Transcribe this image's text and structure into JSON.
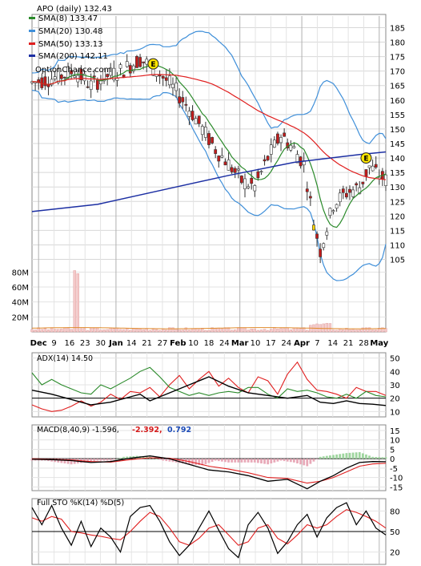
{
  "chart_data": {
    "type": "candlestick",
    "title": "APO (daily) 132.43",
    "watermark": "OptionChance.com",
    "x_tick_labels": [
      "Dec",
      "9",
      "16",
      "23",
      "30",
      "Jan",
      "14",
      "21",
      "27",
      "Feb",
      "10",
      "18",
      "24",
      "Mar",
      "10",
      "17",
      "24",
      "Apr",
      "7",
      "14",
      "21",
      "28",
      "May"
    ],
    "bold_x_labels": [
      "Dec",
      "Jan",
      "Feb",
      "Mar",
      "Apr",
      "May"
    ],
    "price_axis": {
      "ticks": [
        105,
        110,
        115,
        120,
        125,
        130,
        135,
        140,
        145,
        150,
        155,
        160,
        165,
        170,
        175,
        180,
        185
      ],
      "range": [
        101,
        189
      ]
    },
    "volume_axis": {
      "ticks": [
        "20M",
        "40M",
        "60M",
        "80M"
      ],
      "range_millions": [
        0,
        90
      ]
    },
    "legend": [
      {
        "label": "SMA(8) 133.47",
        "color": "#2a8a2a"
      },
      {
        "label": "SMA(20) 130.48",
        "color": "#3f8fd9"
      },
      {
        "label": "SMA(50) 133.13",
        "color": "#e01f1f"
      },
      {
        "label": "SMA(200) 142.11",
        "color": "#1c2fa3"
      }
    ],
    "earnings_markers": [
      {
        "label": "E",
        "x_index": 37,
        "price": 172.5
      },
      {
        "label": "E",
        "x_index": 102,
        "price": 140
      }
    ],
    "sma200_points": [
      [
        0,
        121.5
      ],
      [
        20,
        124
      ],
      [
        40,
        129
      ],
      [
        60,
        134
      ],
      [
        80,
        138.5
      ],
      [
        100,
        141.2
      ],
      [
        108,
        142.1
      ]
    ],
    "volume_spikes_millions": [
      {
        "x_index": 13,
        "value": 82
      },
      {
        "x_index": 14,
        "value": 78
      }
    ],
    "adx_panel": {
      "label": "ADX(14) 14.50",
      "ticks": [
        10,
        20,
        30,
        40,
        50
      ],
      "range": [
        6,
        54
      ],
      "adx": [
        [
          0,
          26
        ],
        [
          6,
          23
        ],
        [
          12,
          19
        ],
        [
          18,
          15
        ],
        [
          24,
          17
        ],
        [
          30,
          21
        ],
        [
          33,
          23
        ],
        [
          36,
          18
        ],
        [
          42,
          24
        ],
        [
          48,
          30
        ],
        [
          54,
          36
        ],
        [
          60,
          29
        ],
        [
          66,
          24
        ],
        [
          72,
          22
        ],
        [
          78,
          20
        ],
        [
          84,
          22
        ],
        [
          88,
          17
        ],
        [
          92,
          16
        ],
        [
          96,
          18
        ],
        [
          100,
          16
        ],
        [
          104,
          15.5
        ],
        [
          108,
          14.5
        ]
      ],
      "plus_di": [
        [
          0,
          39
        ],
        [
          3,
          30
        ],
        [
          6,
          34
        ],
        [
          9,
          30
        ],
        [
          12,
          27
        ],
        [
          15,
          24
        ],
        [
          18,
          23
        ],
        [
          21,
          30
        ],
        [
          24,
          27
        ],
        [
          27,
          31
        ],
        [
          30,
          35
        ],
        [
          33,
          40
        ],
        [
          36,
          43
        ],
        [
          39,
          36
        ],
        [
          42,
          28
        ],
        [
          45,
          25
        ],
        [
          48,
          22
        ],
        [
          51,
          24
        ],
        [
          54,
          22
        ],
        [
          57,
          24
        ],
        [
          60,
          25
        ],
        [
          63,
          24
        ],
        [
          66,
          28
        ],
        [
          69,
          28
        ],
        [
          72,
          23
        ],
        [
          75,
          20
        ],
        [
          78,
          27
        ],
        [
          81,
          25
        ],
        [
          84,
          26
        ],
        [
          87,
          24
        ],
        [
          90,
          21
        ],
        [
          93,
          20
        ],
        [
          96,
          23
        ],
        [
          99,
          20
        ],
        [
          102,
          25
        ],
        [
          105,
          22
        ],
        [
          108,
          21
        ]
      ],
      "minus_di": [
        [
          0,
          15
        ],
        [
          3,
          12
        ],
        [
          6,
          10
        ],
        [
          9,
          11
        ],
        [
          12,
          14
        ],
        [
          15,
          18
        ],
        [
          18,
          14
        ],
        [
          21,
          17
        ],
        [
          24,
          23
        ],
        [
          27,
          19
        ],
        [
          30,
          25
        ],
        [
          33,
          24
        ],
        [
          36,
          28
        ],
        [
          39,
          21
        ],
        [
          42,
          30
        ],
        [
          45,
          37
        ],
        [
          48,
          27
        ],
        [
          51,
          34
        ],
        [
          54,
          40
        ],
        [
          57,
          29
        ],
        [
          60,
          35
        ],
        [
          63,
          28
        ],
        [
          66,
          24
        ],
        [
          69,
          36
        ],
        [
          72,
          33
        ],
        [
          75,
          23
        ],
        [
          78,
          38
        ],
        [
          81,
          47
        ],
        [
          84,
          34
        ],
        [
          87,
          26
        ],
        [
          90,
          25
        ],
        [
          93,
          23
        ],
        [
          96,
          20
        ],
        [
          99,
          28
        ],
        [
          102,
          25
        ],
        [
          105,
          25
        ],
        [
          108,
          22
        ]
      ]
    },
    "macd_panel": {
      "label": "MACD(8,40,9) -1.596,",
      "signal_label": "-2.392,",
      "hist_label": "0.792",
      "ticks": [
        15,
        10,
        5,
        0,
        -5,
        -10,
        -15
      ],
      "range": [
        -17,
        18
      ],
      "macd": [
        [
          0,
          -0.3
        ],
        [
          6,
          -0.5
        ],
        [
          12,
          -1
        ],
        [
          18,
          -2
        ],
        [
          24,
          -1.5
        ],
        [
          30,
          0.3
        ],
        [
          36,
          1.5
        ],
        [
          42,
          0
        ],
        [
          48,
          -3
        ],
        [
          54,
          -6
        ],
        [
          60,
          -7
        ],
        [
          66,
          -9
        ],
        [
          72,
          -12
        ],
        [
          78,
          -11
        ],
        [
          84,
          -16
        ],
        [
          88,
          -12
        ],
        [
          92,
          -9
        ],
        [
          96,
          -5
        ],
        [
          100,
          -2
        ],
        [
          104,
          -1.5
        ],
        [
          108,
          -1.6
        ]
      ],
      "signal": [
        [
          0,
          0
        ],
        [
          6,
          -0.3
        ],
        [
          12,
          -0.7
        ],
        [
          18,
          -1.5
        ],
        [
          24,
          -1.8
        ],
        [
          30,
          -0.5
        ],
        [
          36,
          0.5
        ],
        [
          42,
          0.3
        ],
        [
          48,
          -1.5
        ],
        [
          54,
          -4
        ],
        [
          60,
          -5.5
        ],
        [
          66,
          -7.5
        ],
        [
          72,
          -10
        ],
        [
          78,
          -10.5
        ],
        [
          84,
          -13
        ],
        [
          88,
          -12
        ],
        [
          92,
          -10
        ],
        [
          96,
          -7
        ],
        [
          100,
          -4
        ],
        [
          104,
          -2.8
        ],
        [
          108,
          -2.4
        ]
      ],
      "hist": [
        [
          4,
          -1
        ],
        [
          8,
          -2
        ],
        [
          12,
          -3
        ],
        [
          16,
          -2
        ],
        [
          20,
          -1
        ],
        [
          24,
          -1
        ],
        [
          28,
          1
        ],
        [
          32,
          1.5
        ],
        [
          36,
          1
        ],
        [
          40,
          -1
        ],
        [
          44,
          -2
        ],
        [
          48,
          -3
        ],
        [
          52,
          -3.5
        ],
        [
          56,
          -1
        ],
        [
          60,
          -2
        ],
        [
          64,
          -2
        ],
        [
          68,
          -2
        ],
        [
          72,
          -3
        ],
        [
          76,
          -1
        ],
        [
          80,
          -2
        ],
        [
          84,
          -4
        ],
        [
          88,
          1
        ],
        [
          92,
          2
        ],
        [
          96,
          3
        ],
        [
          100,
          3.5
        ],
        [
          104,
          1
        ],
        [
          107,
          0.8
        ]
      ]
    },
    "sto_panel": {
      "label": "Full STO %K(14) %D(5)",
      "ticks": [
        20,
        50,
        80
      ],
      "range": [
        2,
        98
      ],
      "k": [
        [
          0,
          85
        ],
        [
          3,
          60
        ],
        [
          6,
          88
        ],
        [
          9,
          55
        ],
        [
          12,
          30
        ],
        [
          15,
          65
        ],
        [
          18,
          28
        ],
        [
          21,
          55
        ],
        [
          24,
          42
        ],
        [
          27,
          20
        ],
        [
          30,
          72
        ],
        [
          33,
          85
        ],
        [
          36,
          88
        ],
        [
          39,
          65
        ],
        [
          42,
          35
        ],
        [
          45,
          15
        ],
        [
          48,
          30
        ],
        [
          51,
          55
        ],
        [
          54,
          80
        ],
        [
          57,
          52
        ],
        [
          60,
          25
        ],
        [
          63,
          12
        ],
        [
          66,
          60
        ],
        [
          69,
          78
        ],
        [
          72,
          55
        ],
        [
          75,
          18
        ],
        [
          78,
          35
        ],
        [
          81,
          60
        ],
        [
          84,
          75
        ],
        [
          87,
          42
        ],
        [
          90,
          70
        ],
        [
          93,
          85
        ],
        [
          96,
          92
        ],
        [
          99,
          60
        ],
        [
          102,
          80
        ],
        [
          105,
          55
        ],
        [
          108,
          45
        ]
      ],
      "d": [
        [
          0,
          70
        ],
        [
          3,
          65
        ],
        [
          6,
          72
        ],
        [
          9,
          68
        ],
        [
          12,
          50
        ],
        [
          15,
          48
        ],
        [
          18,
          45
        ],
        [
          21,
          43
        ],
        [
          24,
          40
        ],
        [
          27,
          38
        ],
        [
          30,
          50
        ],
        [
          33,
          65
        ],
        [
          36,
          78
        ],
        [
          39,
          72
        ],
        [
          42,
          55
        ],
        [
          45,
          35
        ],
        [
          48,
          30
        ],
        [
          51,
          40
        ],
        [
          54,
          55
        ],
        [
          57,
          60
        ],
        [
          60,
          45
        ],
        [
          63,
          30
        ],
        [
          66,
          35
        ],
        [
          69,
          55
        ],
        [
          72,
          60
        ],
        [
          75,
          40
        ],
        [
          78,
          32
        ],
        [
          81,
          45
        ],
        [
          84,
          60
        ],
        [
          87,
          55
        ],
        [
          90,
          60
        ],
        [
          93,
          72
        ],
        [
          96,
          82
        ],
        [
          99,
          78
        ],
        [
          102,
          72
        ],
        [
          105,
          65
        ],
        [
          108,
          55
        ]
      ]
    }
  }
}
